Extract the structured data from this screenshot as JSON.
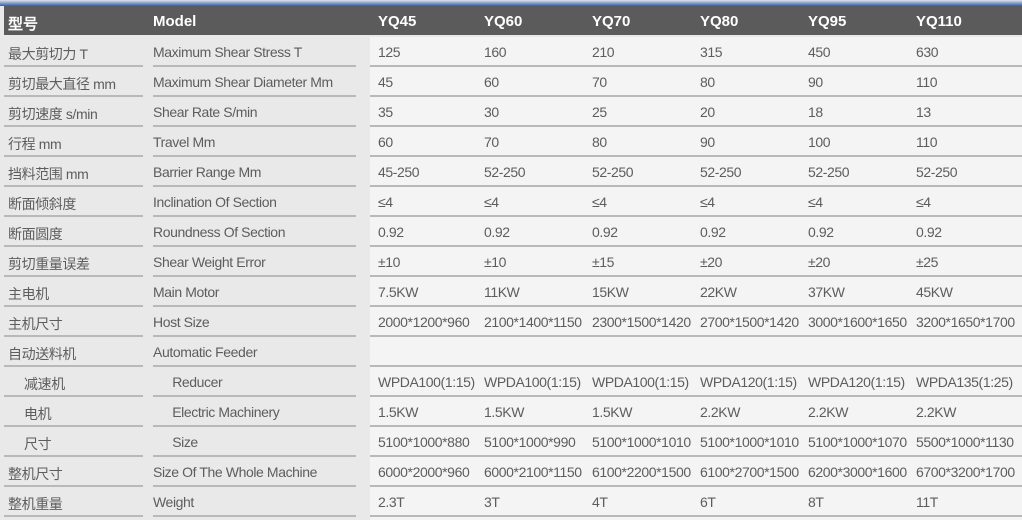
{
  "header": {
    "cn": "型号",
    "en": "Model",
    "models": [
      "YQ45",
      "YQ60",
      "YQ70",
      "YQ80",
      "YQ95",
      "YQ110"
    ]
  },
  "rows": [
    {
      "cn": "最大剪切力 T",
      "en": "Maximum Shear Stress T",
      "values": [
        "125",
        "160",
        "210",
        "315",
        "450",
        "630"
      ]
    },
    {
      "cn": "剪切最大直径 mm",
      "en": "Maximum Shear Diameter Mm",
      "values": [
        "45",
        "60",
        "70",
        "80",
        "90",
        "110"
      ]
    },
    {
      "cn": "剪切速度 s/min",
      "en": "Shear Rate S/min",
      "values": [
        "35",
        "30",
        "25",
        "20",
        "18",
        "13"
      ]
    },
    {
      "cn": "行程 mm",
      "en": "Travel Mm",
      "values": [
        "60",
        "70",
        "80",
        "90",
        "100",
        "110"
      ]
    },
    {
      "cn": "挡料范围 mm",
      "en": "Barrier Range Mm",
      "values": [
        "45-250",
        "52-250",
        "52-250",
        "52-250",
        "52-250",
        "52-250"
      ]
    },
    {
      "cn": "断面倾斜度",
      "en": "Inclination Of Section",
      "values": [
        "≤4",
        "≤4",
        "≤4",
        "≤4",
        "≤4",
        "≤4"
      ]
    },
    {
      "cn": "断面圆度",
      "en": "Roundness Of Section",
      "values": [
        "0.92",
        "0.92",
        "0.92",
        "0.92",
        "0.92",
        "0.92"
      ]
    },
    {
      "cn": "剪切重量误差",
      "en": "Shear Weight Error",
      "values": [
        "±10",
        "±10",
        "±15",
        "±20",
        "±20",
        "±25"
      ]
    },
    {
      "cn": "主电机",
      "en": "Main Motor",
      "values": [
        "7.5KW",
        "11KW",
        "15KW",
        "22KW",
        "37KW",
        "45KW"
      ]
    },
    {
      "cn": "主机尺寸",
      "en": "Host Size",
      "values": [
        "2000*1200*960",
        "2100*1400*1150",
        "2300*1500*1420",
        "2700*1500*1420",
        "3000*1600*1650",
        "3200*1650*1700"
      ]
    },
    {
      "cn": "自动送料机",
      "en": "Automatic Feeder",
      "values": []
    },
    {
      "cn": "减速机",
      "en": "Reducer",
      "indent": true,
      "values": [
        "WPDA100(1:15)",
        "WPDA100(1:15)",
        "WPDA100(1:15)",
        "WPDA120(1:15)",
        "WPDA120(1:15)",
        "WPDA135(1:25)"
      ]
    },
    {
      "cn": "电机",
      "en": "Electric Machinery",
      "indent": true,
      "values": [
        "1.5KW",
        "1.5KW",
        "1.5KW",
        "2.2KW",
        "2.2KW",
        "2.2KW"
      ]
    },
    {
      "cn": "尺寸",
      "en": "Size",
      "indent": true,
      "values": [
        "5100*1000*880",
        "5100*1000*990",
        "5100*1000*1010",
        "5100*1000*1010",
        "5100*1000*1070",
        "5500*1000*1130"
      ]
    },
    {
      "cn": "整机尺寸",
      "en": "Size Of The Whole Machine",
      "values": [
        "6000*2000*960",
        "6000*2100*1150",
        "6100*2200*1500",
        "6100*2700*1500",
        "6200*3000*1600",
        "6700*3200*1700"
      ]
    },
    {
      "cn": "整机重量",
      "en": "Weight",
      "values": [
        "2.3T",
        "3T",
        "4T",
        "6T",
        "8T",
        "11T"
      ]
    }
  ]
}
